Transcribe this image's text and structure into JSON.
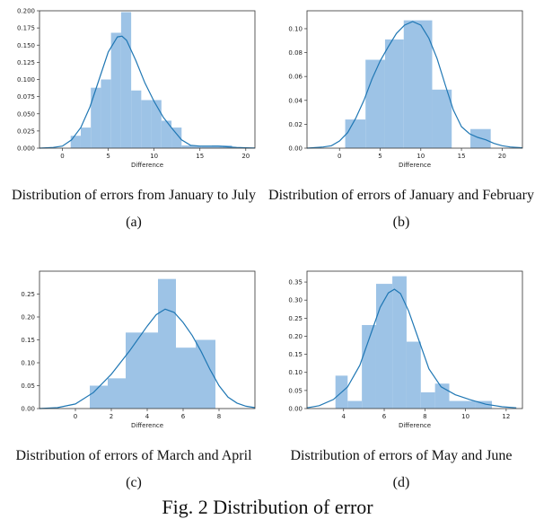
{
  "figure_title": "Fig. 2 Distribution of error",
  "colors": {
    "bar": "#9dc3e6",
    "kde": "#1f77b4",
    "axis": "#333333"
  },
  "chart_data": [
    {
      "type": "bar",
      "caption": "Distribution of errors from January to July",
      "label": "(a)",
      "xlabel": "Difference",
      "xlim": [
        -2.5,
        21
      ],
      "ylim": [
        0,
        0.2
      ],
      "xticks": [
        0,
        5,
        10,
        15,
        20
      ],
      "yticks": [
        0.0,
        0.025,
        0.05,
        0.075,
        0.1,
        0.125,
        0.15,
        0.175,
        0.2
      ],
      "ytick_labels": [
        "0.000",
        "0.025",
        "0.050",
        "0.075",
        "0.100",
        "0.125",
        "0.150",
        "0.175",
        "0.200"
      ],
      "bins": [
        {
          "x0": 0.9,
          "x1": 2.0,
          "y": 0.018
        },
        {
          "x0": 2.0,
          "x1": 3.1,
          "y": 0.03
        },
        {
          "x0": 3.1,
          "x1": 4.2,
          "y": 0.088
        },
        {
          "x0": 4.2,
          "x1": 5.3,
          "y": 0.1
        },
        {
          "x0": 5.3,
          "x1": 6.4,
          "y": 0.168
        },
        {
          "x0": 6.4,
          "x1": 7.5,
          "y": 0.198
        },
        {
          "x0": 7.5,
          "x1": 8.6,
          "y": 0.084
        },
        {
          "x0": 8.6,
          "x1": 9.7,
          "y": 0.07
        },
        {
          "x0": 9.7,
          "x1": 10.8,
          "y": 0.07
        },
        {
          "x0": 10.8,
          "x1": 11.9,
          "y": 0.04
        },
        {
          "x0": 11.9,
          "x1": 13.0,
          "y": 0.03
        },
        {
          "x0": 13.0,
          "x1": 14.1,
          "y": 0.004
        },
        {
          "x0": 14.1,
          "x1": 15.2,
          "y": 0.003
        },
        {
          "x0": 15.2,
          "x1": 16.3,
          "y": 0.003
        },
        {
          "x0": 16.3,
          "x1": 17.4,
          "y": 0.004
        },
        {
          "x0": 17.4,
          "x1": 18.5,
          "y": 0.004
        }
      ],
      "kde": [
        [
          -2.5,
          0.0
        ],
        [
          -1,
          0.001
        ],
        [
          0,
          0.003
        ],
        [
          1,
          0.012
        ],
        [
          2,
          0.03
        ],
        [
          3,
          0.06
        ],
        [
          4,
          0.1
        ],
        [
          5,
          0.14
        ],
        [
          6,
          0.162
        ],
        [
          6.5,
          0.163
        ],
        [
          7,
          0.157
        ],
        [
          8,
          0.128
        ],
        [
          9,
          0.095
        ],
        [
          10,
          0.068
        ],
        [
          11,
          0.045
        ],
        [
          12,
          0.028
        ],
        [
          13,
          0.012
        ],
        [
          14,
          0.004
        ],
        [
          15,
          0.003
        ],
        [
          16,
          0.003
        ],
        [
          17,
          0.003
        ],
        [
          18,
          0.002
        ],
        [
          19,
          0.001
        ],
        [
          20,
          0.0005
        ],
        [
          21,
          0.0002
        ]
      ]
    },
    {
      "type": "bar",
      "caption": "Distribution of errors of January and February",
      "label": "(b)",
      "xlabel": "Difference",
      "xlim": [
        -4,
        22.5
      ],
      "ylim": [
        0,
        0.115
      ],
      "xticks": [
        0,
        5,
        10,
        15,
        20
      ],
      "yticks": [
        0.0,
        0.02,
        0.04,
        0.06,
        0.08,
        0.1
      ],
      "ytick_labels": [
        "0.00",
        "0.02",
        "0.04",
        "0.06",
        "0.08",
        "0.10"
      ],
      "bins": [
        {
          "x0": 0.7,
          "x1": 3.2,
          "y": 0.024
        },
        {
          "x0": 3.2,
          "x1": 5.6,
          "y": 0.074
        },
        {
          "x0": 5.6,
          "x1": 7.9,
          "y": 0.091
        },
        {
          "x0": 7.9,
          "x1": 11.4,
          "y": 0.107
        },
        {
          "x0": 11.4,
          "x1": 13.8,
          "y": 0.049
        },
        {
          "x0": 16.1,
          "x1": 18.6,
          "y": 0.016
        }
      ],
      "kde": [
        [
          -4,
          0.0
        ],
        [
          -2,
          0.001
        ],
        [
          -1,
          0.002
        ],
        [
          0,
          0.006
        ],
        [
          1,
          0.013
        ],
        [
          2,
          0.025
        ],
        [
          3,
          0.04
        ],
        [
          4,
          0.058
        ],
        [
          5,
          0.073
        ],
        [
          6,
          0.085
        ],
        [
          7,
          0.096
        ],
        [
          8,
          0.103
        ],
        [
          9,
          0.106
        ],
        [
          10,
          0.103
        ],
        [
          11,
          0.092
        ],
        [
          12,
          0.075
        ],
        [
          13,
          0.053
        ],
        [
          14,
          0.032
        ],
        [
          15,
          0.018
        ],
        [
          16,
          0.012
        ],
        [
          17,
          0.009
        ],
        [
          18,
          0.007
        ],
        [
          19,
          0.004
        ],
        [
          20,
          0.002
        ],
        [
          21,
          0.001
        ],
        [
          22.5,
          0.0003
        ]
      ]
    },
    {
      "type": "bar",
      "caption": "Distribution of errors of March and April",
      "label": "(c)",
      "xlabel": "Difference",
      "xlim": [
        -2,
        10
      ],
      "ylim": [
        0,
        0.3
      ],
      "xticks": [
        0,
        2,
        4,
        6,
        8
      ],
      "yticks": [
        0.0,
        0.05,
        0.1,
        0.15,
        0.2,
        0.25
      ],
      "ytick_labels": [
        "0.00",
        "0.05",
        "0.10",
        "0.15",
        "0.20",
        "0.25"
      ],
      "bins": [
        {
          "x0": 0.8,
          "x1": 1.8,
          "y": 0.05
        },
        {
          "x0": 1.8,
          "x1": 2.8,
          "y": 0.066
        },
        {
          "x0": 2.8,
          "x1": 4.6,
          "y": 0.166
        },
        {
          "x0": 4.6,
          "x1": 5.6,
          "y": 0.283
        },
        {
          "x0": 5.6,
          "x1": 6.7,
          "y": 0.133
        },
        {
          "x0": 6.7,
          "x1": 7.8,
          "y": 0.15
        }
      ],
      "kde": [
        [
          -2,
          0.0
        ],
        [
          -1,
          0.002
        ],
        [
          0,
          0.01
        ],
        [
          1,
          0.035
        ],
        [
          2,
          0.075
        ],
        [
          3,
          0.125
        ],
        [
          4,
          0.18
        ],
        [
          4.5,
          0.205
        ],
        [
          5,
          0.217
        ],
        [
          5.5,
          0.21
        ],
        [
          6,
          0.188
        ],
        [
          6.5,
          0.16
        ],
        [
          7,
          0.125
        ],
        [
          7.5,
          0.085
        ],
        [
          8,
          0.05
        ],
        [
          8.5,
          0.025
        ],
        [
          9,
          0.012
        ],
        [
          9.5,
          0.005
        ],
        [
          10,
          0.002
        ]
      ]
    },
    {
      "type": "bar",
      "caption": "Distribution of errors of May and June",
      "label": "(d)",
      "xlabel": "Difference",
      "xlim": [
        2.2,
        12.8
      ],
      "ylim": [
        0,
        0.38
      ],
      "xticks": [
        4,
        6,
        8,
        10,
        12
      ],
      "yticks": [
        0.0,
        0.05,
        0.1,
        0.15,
        0.2,
        0.25,
        0.3,
        0.35
      ],
      "ytick_labels": [
        "0.00",
        "0.05",
        "0.10",
        "0.15",
        "0.20",
        "0.25",
        "0.30",
        "0.35"
      ],
      "bins": [
        {
          "x0": 3.6,
          "x1": 4.2,
          "y": 0.091
        },
        {
          "x0": 4.2,
          "x1": 4.9,
          "y": 0.021
        },
        {
          "x0": 4.9,
          "x1": 5.6,
          "y": 0.231
        },
        {
          "x0": 5.6,
          "x1": 6.4,
          "y": 0.345
        },
        {
          "x0": 6.4,
          "x1": 7.1,
          "y": 0.366
        },
        {
          "x0": 7.1,
          "x1": 7.8,
          "y": 0.185
        },
        {
          "x0": 7.8,
          "x1": 8.5,
          "y": 0.045
        },
        {
          "x0": 8.5,
          "x1": 9.2,
          "y": 0.069
        },
        {
          "x0": 9.2,
          "x1": 10.5,
          "y": 0.021
        },
        {
          "x0": 10.5,
          "x1": 11.3,
          "y": 0.021
        }
      ],
      "kde": [
        [
          2.2,
          0.002
        ],
        [
          2.8,
          0.008
        ],
        [
          3.5,
          0.025
        ],
        [
          4.2,
          0.06
        ],
        [
          4.8,
          0.12
        ],
        [
          5.3,
          0.2
        ],
        [
          5.8,
          0.28
        ],
        [
          6.2,
          0.32
        ],
        [
          6.5,
          0.33
        ],
        [
          6.8,
          0.318
        ],
        [
          7.2,
          0.27
        ],
        [
          7.7,
          0.19
        ],
        [
          8.2,
          0.11
        ],
        [
          8.8,
          0.06
        ],
        [
          9.5,
          0.038
        ],
        [
          10.2,
          0.025
        ],
        [
          11,
          0.012
        ],
        [
          11.8,
          0.005
        ],
        [
          12.5,
          0.002
        ]
      ]
    }
  ]
}
